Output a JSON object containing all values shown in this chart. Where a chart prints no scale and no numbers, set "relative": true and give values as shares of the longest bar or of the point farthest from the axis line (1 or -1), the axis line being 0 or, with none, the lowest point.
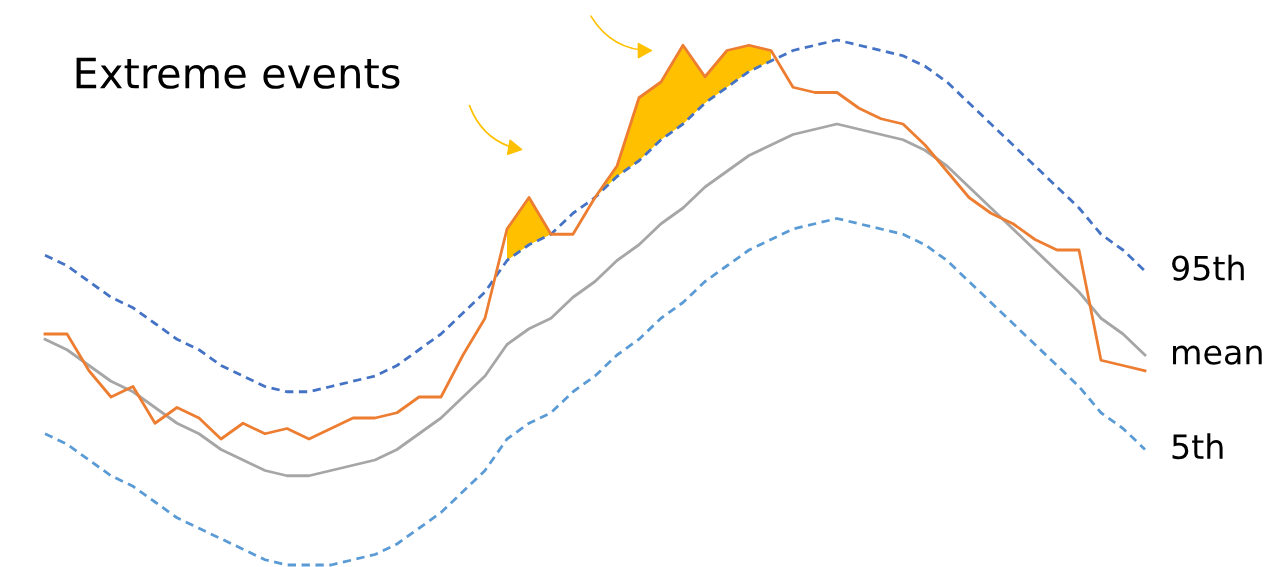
{
  "chart_data": {
    "type": "line",
    "relative": true,
    "legend": false,
    "marker": "none",
    "categories": [
      null,
      null,
      null,
      null,
      null,
      null,
      null,
      null,
      null,
      null,
      null,
      null,
      null,
      null,
      null,
      null,
      null,
      null,
      null,
      null,
      null,
      null,
      null,
      null,
      null,
      null,
      null,
      null,
      null,
      null,
      null,
      null,
      null,
      null,
      null,
      null,
      null,
      null,
      null,
      null,
      null,
      null,
      null,
      null,
      null,
      null,
      null,
      null,
      null,
      null,
      null
    ],
    "annotations": [
      "Extreme events"
    ],
    "series": [
      {
        "name": "95th",
        "color": "#4472c4",
        "line_style": "dashed",
        "values": [
          0.59,
          0.57,
          0.54,
          0.51,
          0.49,
          0.46,
          0.43,
          0.41,
          0.38,
          0.36,
          0.34,
          0.33,
          0.33,
          0.34,
          0.35,
          0.36,
          0.38,
          0.41,
          0.44,
          0.48,
          0.52,
          0.58,
          0.61,
          0.63,
          0.67,
          0.7,
          0.74,
          0.77,
          0.81,
          0.84,
          0.88,
          0.91,
          0.94,
          0.96,
          0.98,
          0.99,
          1.0,
          0.99,
          0.98,
          0.97,
          0.95,
          0.92,
          0.88,
          0.84,
          0.8,
          0.76,
          0.72,
          0.68,
          0.63,
          0.6,
          0.56
        ]
      },
      {
        "name": "mean",
        "color": "#a6a6a6",
        "line_style": "solid",
        "values": [
          0.43,
          0.41,
          0.38,
          0.35,
          0.33,
          0.3,
          0.27,
          0.25,
          0.22,
          0.2,
          0.18,
          0.17,
          0.17,
          0.18,
          0.19,
          0.2,
          0.22,
          0.25,
          0.28,
          0.32,
          0.36,
          0.42,
          0.45,
          0.47,
          0.51,
          0.54,
          0.58,
          0.61,
          0.65,
          0.68,
          0.72,
          0.75,
          0.78,
          0.8,
          0.82,
          0.83,
          0.84,
          0.83,
          0.82,
          0.81,
          0.79,
          0.76,
          0.72,
          0.68,
          0.64,
          0.6,
          0.56,
          0.52,
          0.47,
          0.44,
          0.4
        ]
      },
      {
        "name": "5th",
        "color": "#5b9bd5",
        "line_style": "dashed",
        "values": [
          0.25,
          0.23,
          0.2,
          0.17,
          0.15,
          0.12,
          0.09,
          0.07,
          0.05,
          0.03,
          0.01,
          0.0,
          0.0,
          0.0,
          0.01,
          0.02,
          0.04,
          0.07,
          0.1,
          0.14,
          0.18,
          0.24,
          0.27,
          0.29,
          0.33,
          0.36,
          0.4,
          0.43,
          0.47,
          0.5,
          0.54,
          0.57,
          0.6,
          0.62,
          0.64,
          0.65,
          0.66,
          0.65,
          0.64,
          0.63,
          0.61,
          0.58,
          0.54,
          0.5,
          0.46,
          0.42,
          0.38,
          0.34,
          0.29,
          0.26,
          0.22
        ]
      },
      {
        "type": "area",
        "color": "#ffc000",
        "values": [
          null,
          null,
          null,
          null,
          null,
          null,
          null,
          null,
          null,
          null,
          null,
          null,
          null,
          null,
          null,
          null,
          null,
          null,
          null,
          null,
          null,
          0.64,
          0.7,
          0.63,
          null,
          0.7,
          0.76,
          0.89,
          0.92,
          0.99,
          0.93,
          0.98,
          0.99,
          0.98,
          null,
          null,
          null,
          null,
          null,
          null,
          null,
          null,
          null,
          null,
          null,
          null,
          null,
          null,
          null,
          null,
          null
        ]
      },
      {
        "color": "#ed7d31",
        "line_style": "solid",
        "values": [
          0.44,
          0.44,
          0.37,
          0.32,
          0.34,
          0.27,
          0.3,
          0.28,
          0.24,
          0.27,
          0.25,
          0.26,
          0.24,
          0.26,
          0.28,
          0.28,
          0.29,
          0.32,
          0.32,
          0.4,
          0.47,
          0.64,
          0.7,
          0.63,
          0.63,
          0.7,
          0.76,
          0.89,
          0.92,
          0.99,
          0.93,
          0.98,
          0.99,
          0.98,
          0.91,
          0.9,
          0.9,
          0.87,
          0.85,
          0.84,
          0.8,
          0.75,
          0.7,
          0.67,
          0.65,
          0.62,
          0.6,
          0.6,
          0.39,
          0.38,
          0.37
        ]
      }
    ]
  }
}
